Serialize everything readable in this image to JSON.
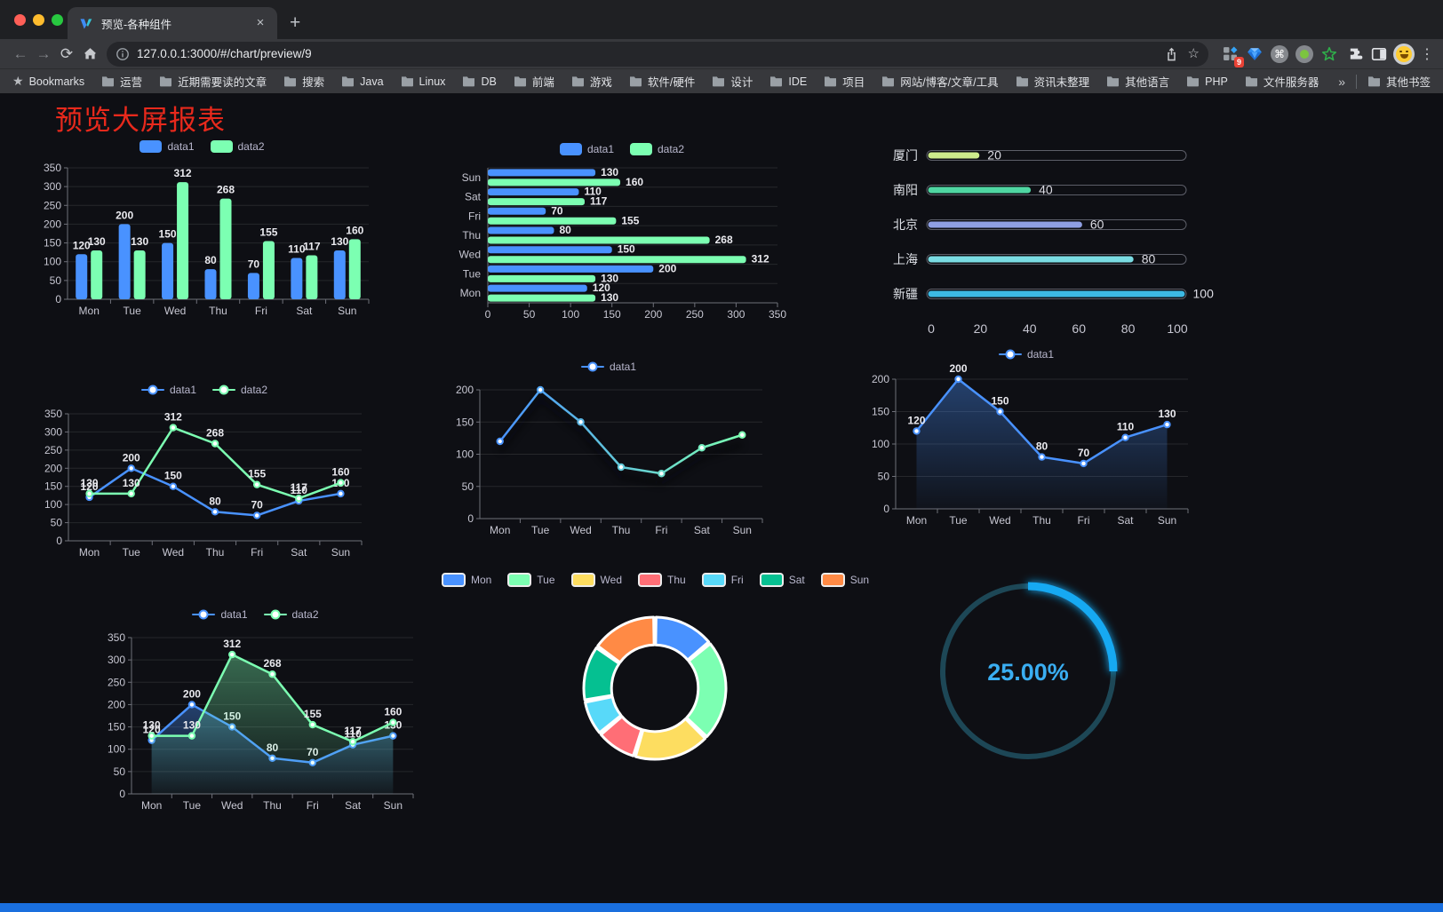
{
  "browser": {
    "tab_title": "预览-各种组件",
    "tab_close_glyph": "×",
    "new_tab_glyph": "+",
    "url": "127.0.0.1:3000/#/chart/preview/9",
    "extension_badge": "9",
    "menu_glyph": "⋮",
    "cmd_glyph": "⌘",
    "star_glyph": "☆",
    "bookmarks_star_glyph": "★"
  },
  "bookmarks": {
    "bar_label": "Bookmarks",
    "folders": [
      "运营",
      "近期需要读的文章",
      "搜索",
      "Java",
      "Linux",
      "DB",
      "前端",
      "游戏",
      "软件/硬件",
      "设计",
      "IDE",
      "项目",
      "网站/博客/文章/工具",
      "资讯未整理",
      "其他语言",
      "PHP",
      "文件服务器"
    ],
    "overflow_chevron": "»",
    "other_bookmarks": "其他书签"
  },
  "page": {
    "title": "预览大屏报表",
    "title_color": "#e8291c",
    "background": "#0e0f14",
    "bottom_bar_color": "#1a6fde"
  },
  "chart_data": [
    {
      "id": "grouped-bar",
      "type": "bar",
      "categories": [
        "Mon",
        "Tue",
        "Wed",
        "Thu",
        "Fri",
        "Sat",
        "Sun"
      ],
      "series": [
        {
          "name": "data1",
          "color": "#4992ff",
          "values": [
            120,
            200,
            150,
            80,
            70,
            110,
            130
          ]
        },
        {
          "name": "data2",
          "color": "#7cffb2",
          "values": [
            130,
            130,
            312,
            268,
            155,
            117,
            160
          ]
        }
      ],
      "ylim": [
        0,
        350
      ],
      "yticks": [
        0,
        50,
        100,
        150,
        200,
        250,
        300,
        350
      ],
      "legend": [
        {
          "label": "data1",
          "color": "#4992ff"
        },
        {
          "label": "data2",
          "color": "#7cffb2"
        }
      ]
    },
    {
      "id": "horizontal-bar",
      "type": "bar-horizontal",
      "categories": [
        "Mon",
        "Tue",
        "Wed",
        "Thu",
        "Fri",
        "Sat",
        "Sun"
      ],
      "series": [
        {
          "name": "data1",
          "color": "#4992ff",
          "values": [
            120,
            200,
            150,
            80,
            70,
            110,
            130
          ]
        },
        {
          "name": "data2",
          "color": "#7cffb2",
          "values": [
            130,
            130,
            312,
            268,
            155,
            117,
            160
          ]
        }
      ],
      "xlim": [
        0,
        350
      ],
      "xticks": [
        0,
        50,
        100,
        150,
        200,
        250,
        300,
        350
      ],
      "legend": [
        {
          "label": "data1",
          "color": "#4992ff"
        },
        {
          "label": "data2",
          "color": "#7cffb2"
        }
      ]
    },
    {
      "id": "progress-bars",
      "type": "progress-bars",
      "rows": [
        {
          "label": "厦门",
          "value": 20,
          "color": "#cdeb8b"
        },
        {
          "label": "南阳",
          "value": 40,
          "color": "#4fd6a2"
        },
        {
          "label": "北京",
          "value": 60,
          "color": "#8f9fe3"
        },
        {
          "label": "上海",
          "value": 80,
          "color": "#7adce3"
        },
        {
          "label": "新疆",
          "value": 100,
          "color": "#3cb9e3"
        }
      ],
      "xlim": [
        0,
        100
      ],
      "xticks": [
        0,
        20,
        40,
        60,
        80,
        100
      ]
    },
    {
      "id": "dual-line",
      "type": "line",
      "show_labels": true,
      "categories": [
        "Mon",
        "Tue",
        "Wed",
        "Thu",
        "Fri",
        "Sat",
        "Sun"
      ],
      "series": [
        {
          "name": "data1",
          "color": "#4992ff",
          "values": [
            120,
            200,
            150,
            80,
            70,
            110,
            130
          ]
        },
        {
          "name": "data2",
          "color": "#7cffb2",
          "values": [
            130,
            130,
            312,
            268,
            155,
            117,
            160
          ]
        }
      ],
      "ylim": [
        0,
        350
      ],
      "yticks": [
        0,
        50,
        100,
        150,
        200,
        250,
        300,
        350
      ],
      "legend": [
        {
          "label": "data1",
          "color": "#4992ff"
        },
        {
          "label": "data2",
          "color": "#7cffb2"
        }
      ]
    },
    {
      "id": "gradient-line",
      "type": "line",
      "show_labels": false,
      "categories": [
        "Mon",
        "Tue",
        "Wed",
        "Thu",
        "Fri",
        "Sat",
        "Sun"
      ],
      "series": [
        {
          "name": "data1",
          "gradient": [
            "#4992ff",
            "#7cffb2"
          ],
          "shadow": true,
          "values": [
            120,
            200,
            150,
            80,
            70,
            110,
            130
          ]
        }
      ],
      "ylim": [
        0,
        200
      ],
      "yticks": [
        0,
        50,
        100,
        150,
        200
      ],
      "legend": [
        {
          "label": "data1",
          "color": "#4992ff"
        }
      ]
    },
    {
      "id": "area-line",
      "type": "line",
      "show_labels": true,
      "categories": [
        "Mon",
        "Tue",
        "Wed",
        "Thu",
        "Fri",
        "Sat",
        "Sun"
      ],
      "series": [
        {
          "name": "data1",
          "color": "#4992ff",
          "area": true,
          "values": [
            120,
            200,
            150,
            80,
            70,
            110,
            130
          ]
        }
      ],
      "ylim": [
        0,
        200
      ],
      "yticks": [
        0,
        50,
        100,
        150,
        200
      ],
      "legend": [
        {
          "label": "data1",
          "color": "#4992ff"
        }
      ]
    },
    {
      "id": "dual-area-line",
      "type": "line",
      "show_labels": true,
      "categories": [
        "Mon",
        "Tue",
        "Wed",
        "Thu",
        "Fri",
        "Sat",
        "Sun"
      ],
      "series": [
        {
          "name": "data1",
          "color": "#4992ff",
          "area": true,
          "values": [
            120,
            200,
            150,
            80,
            70,
            110,
            130
          ]
        },
        {
          "name": "data2",
          "color": "#7cffb2",
          "area": true,
          "values": [
            130,
            130,
            312,
            268,
            155,
            117,
            160
          ]
        }
      ],
      "ylim": [
        0,
        350
      ],
      "yticks": [
        0,
        50,
        100,
        150,
        200,
        250,
        300,
        350
      ],
      "legend": [
        {
          "label": "data1",
          "color": "#4992ff"
        },
        {
          "label": "data2",
          "color": "#7cffb2"
        }
      ]
    },
    {
      "id": "donut",
      "type": "pie",
      "inner_ratio": 0.61,
      "slices": [
        {
          "label": "Mon",
          "value": 120,
          "color": "#4992ff"
        },
        {
          "label": "Tue",
          "value": 200,
          "color": "#7cffb2"
        },
        {
          "label": "Wed",
          "value": 150,
          "color": "#fddd60"
        },
        {
          "label": "Thu",
          "value": 80,
          "color": "#ff6e76"
        },
        {
          "label": "Fri",
          "value": 70,
          "color": "#58d9f9"
        },
        {
          "label": "Sat",
          "value": 110,
          "color": "#05c091"
        },
        {
          "label": "Sun",
          "value": 130,
          "color": "#ff8a45"
        }
      ]
    },
    {
      "id": "gauge",
      "type": "gauge",
      "percent": 25,
      "label": "25.00%",
      "track_color": "#1d4756",
      "progress_color": "#18a9f2",
      "text_color": "#3aaef2"
    }
  ]
}
